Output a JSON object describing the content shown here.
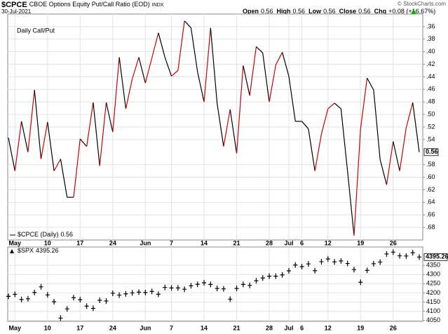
{
  "header": {
    "symbol": "$CPCE",
    "name": "CBOE Options Equity Put/Call Ratio (EOD)",
    "exchange": "INDX",
    "date": "30-Jul-2021",
    "stats": [
      {
        "label": "Open",
        "value": "0.56"
      },
      {
        "label": "High",
        "value": "0.56"
      },
      {
        "label": "Low",
        "value": "0.56"
      },
      {
        "label": "Close",
        "value": "0.56"
      },
      {
        "label": "Chg",
        "value": "+0.08 (+16.67%)"
      }
    ],
    "source": "© StockCharts.com"
  },
  "chart_data": [
    {
      "type": "line",
      "annotation": "Daily Call/Put",
      "categories": [
        null,
        "May",
        null,
        null,
        null,
        null,
        "10",
        null,
        null,
        null,
        null,
        "17",
        null,
        null,
        null,
        null,
        "24",
        null,
        null,
        null,
        null,
        "Jun",
        null,
        null,
        null,
        "7",
        null,
        null,
        null,
        null,
        "14",
        null,
        null,
        null,
        null,
        "21",
        null,
        null,
        null,
        null,
        "28",
        null,
        null,
        "Jul",
        null,
        "6",
        null,
        null,
        null,
        "12",
        null,
        null,
        null,
        null,
        "19",
        null,
        null,
        null,
        null,
        "26",
        null,
        null,
        null,
        null
      ],
      "series": [
        {
          "name": "$CPCE (Daily)",
          "legend_value": "0.56",
          "color": "#000000",
          "rise_color": "#cc0000",
          "values": [
            0.537,
            0.59,
            0.511,
            0.56,
            0.461,
            0.571,
            0.512,
            0.59,
            0.571,
            0.632,
            0.632,
            0.539,
            0.551,
            0.481,
            0.582,
            0.481,
            0.528,
            0.409,
            0.491,
            0.443,
            0.409,
            0.45,
            0.41,
            0.37,
            0.409,
            0.439,
            0.43,
            0.351,
            0.362,
            0.432,
            0.48,
            0.362,
            0.482,
            0.551,
            0.492,
            0.562,
            0.422,
            0.47,
            0.392,
            0.402,
            0.48,
            0.421,
            0.401,
            0.439,
            0.511,
            0.511,
            0.523,
            0.59,
            0.531,
            0.491,
            0.482,
            0.491,
            0.59,
            0.693,
            0.523,
            0.442,
            0.461,
            0.572,
            0.612,
            0.543,
            0.59,
            0.521,
            0.481,
            0.56
          ]
        }
      ],
      "ylim": [
        0.34,
        0.7
      ],
      "y_inverted": true,
      "yticks": [
        {
          "value": 0.36,
          "label": ".36"
        },
        {
          "value": 0.38,
          "label": ".38"
        },
        {
          "value": 0.4,
          "label": ".40"
        },
        {
          "value": 0.42,
          "label": ".42"
        },
        {
          "value": 0.44,
          "label": ".44"
        },
        {
          "value": 0.46,
          "label": ".46"
        },
        {
          "value": 0.48,
          "label": ".48"
        },
        {
          "value": 0.5,
          "label": ".50"
        },
        {
          "value": 0.52,
          "label": ".52"
        },
        {
          "value": 0.54,
          "label": ".54"
        },
        {
          "value": 0.58,
          "label": ".58"
        },
        {
          "value": 0.6,
          "label": ".60"
        },
        {
          "value": 0.62,
          "label": ".62"
        },
        {
          "value": 0.64,
          "label": ".64"
        },
        {
          "value": 0.66,
          "label": ".66"
        },
        {
          "value": 0.68,
          "label": ".68"
        }
      ],
      "last_value_label": "0.56",
      "grid": true
    },
    {
      "type": "cross",
      "categories": [
        null,
        "May",
        null,
        null,
        null,
        null,
        "10",
        null,
        null,
        null,
        null,
        "17",
        null,
        null,
        null,
        null,
        "24",
        null,
        null,
        null,
        null,
        "Jun",
        null,
        null,
        null,
        "7",
        null,
        null,
        null,
        null,
        "14",
        null,
        null,
        null,
        null,
        "21",
        null,
        null,
        null,
        null,
        "28",
        null,
        null,
        "Jul",
        null,
        "6",
        null,
        null,
        null,
        "12",
        null,
        null,
        null,
        null,
        "19",
        null,
        null,
        null,
        null,
        "26",
        null,
        null,
        null,
        null
      ],
      "series": [
        {
          "name": "$SPX",
          "legend_value": "4395.26",
          "color": "#000000",
          "values": [
            4181,
            4192,
            4164,
            4168,
            4202,
            4233,
            4189,
            4152,
            4063,
            4113,
            4174,
            4163,
            4128,
            4116,
            4160,
            4156,
            4198,
            4188,
            4195,
            4200,
            4204,
            4202,
            4208,
            4193,
            4230,
            4227,
            4227,
            4220,
            4239,
            4247,
            4255,
            4246,
            4224,
            4222,
            4166,
            4224,
            4246,
            4241,
            4266,
            4281,
            4291,
            4291,
            4298,
            4320,
            4352,
            4343,
            4358,
            4321,
            4370,
            4385,
            4369,
            4374,
            4360,
            4327,
            4258,
            4323,
            4359,
            4368,
            4412,
            4422,
            4402,
            4401,
            4419,
            4395.26
          ]
        }
      ],
      "ylim": [
        4045,
        4450
      ],
      "yticks": [
        4050,
        4100,
        4150,
        4200,
        4250,
        4300,
        4350
      ],
      "last_value_label": "4395.26",
      "grid": true
    }
  ]
}
